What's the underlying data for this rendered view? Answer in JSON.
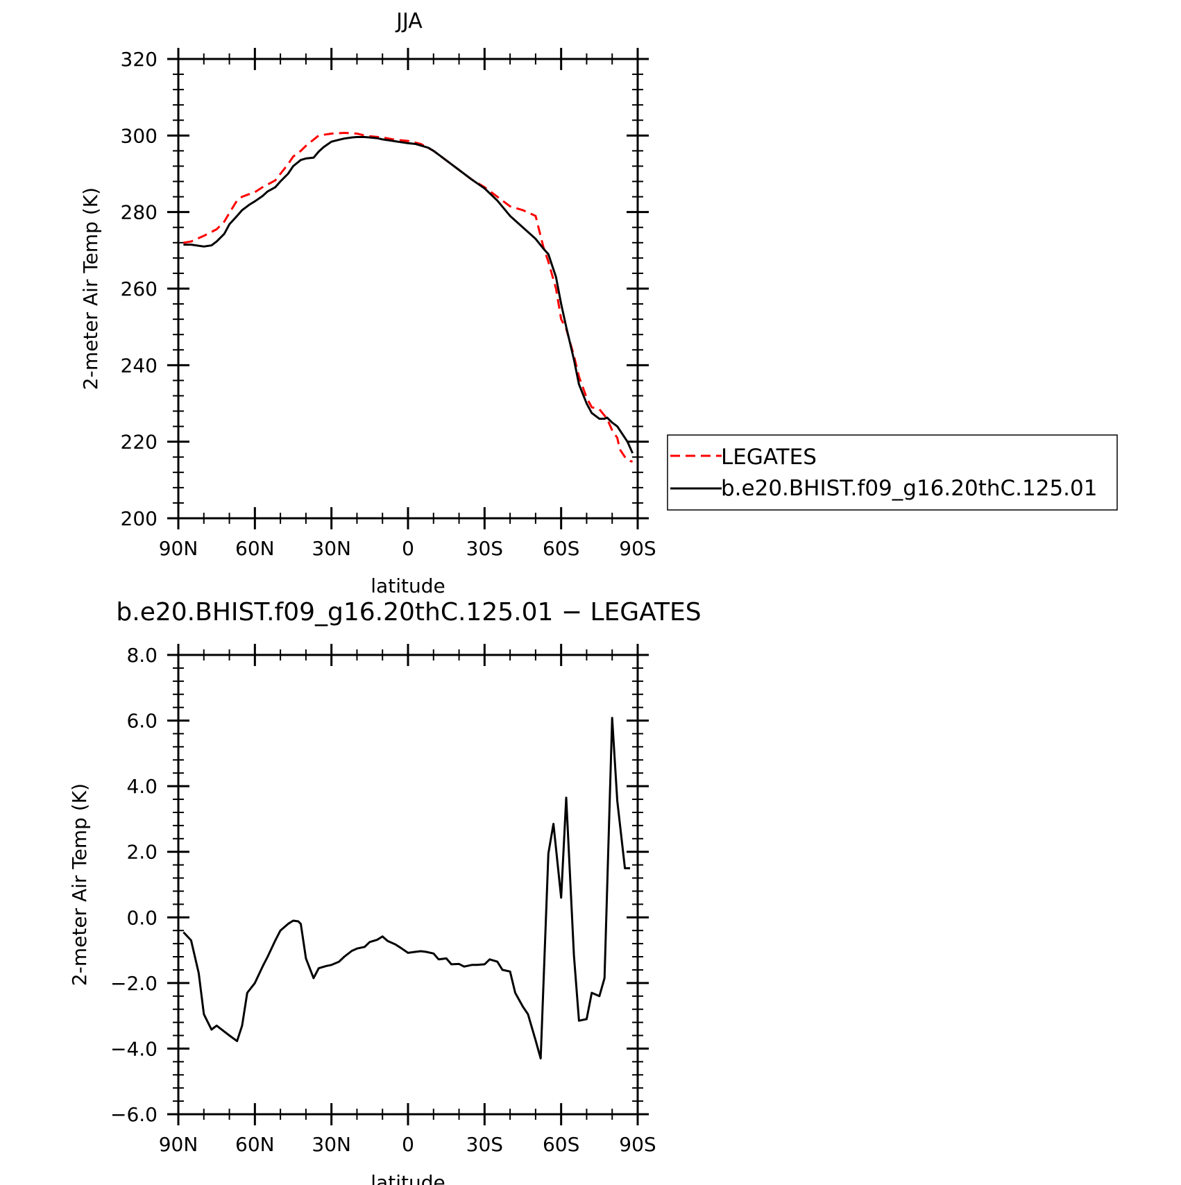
{
  "chart_data": [
    {
      "type": "line",
      "title": "JJA",
      "xlabel": "latitude",
      "ylabel": "2-meter Air Temp (K)",
      "xlim": [
        90,
        -90
      ],
      "ylim": [
        200,
        320
      ],
      "x_ticks": [
        {
          "value": 90,
          "label": "90N"
        },
        {
          "value": 60,
          "label": "60N"
        },
        {
          "value": 30,
          "label": "30N"
        },
        {
          "value": 0,
          "label": "0"
        },
        {
          "value": -30,
          "label": "30S"
        },
        {
          "value": -60,
          "label": "60S"
        },
        {
          "value": -90,
          "label": "90S"
        }
      ],
      "y_ticks": [
        {
          "value": 200,
          "label": "200"
        },
        {
          "value": 220,
          "label": "220"
        },
        {
          "value": 240,
          "label": "240"
        },
        {
          "value": 260,
          "label": "260"
        },
        {
          "value": 280,
          "label": "280"
        },
        {
          "value": 300,
          "label": "300"
        },
        {
          "value": 320,
          "label": "320"
        }
      ],
      "legend_position": "right",
      "series": [
        {
          "name": "LEGATES",
          "color": "#ff0000",
          "dash": "dashed",
          "x": [
            88,
            85,
            80,
            75,
            72,
            70,
            67,
            65,
            63,
            60,
            57,
            55,
            52,
            50,
            47,
            45,
            42,
            40,
            35,
            30,
            27,
            25,
            20,
            17,
            15,
            10,
            5,
            0,
            -5,
            -10,
            -15,
            -20,
            -25,
            -30,
            -35,
            -40,
            -45,
            -50,
            -53,
            -55,
            -58,
            -60,
            -62,
            -65,
            -67,
            -70,
            -72,
            -75,
            -78,
            -80,
            -82,
            -83,
            -84,
            -85,
            -87,
            -88
          ],
          "y": [
            272,
            272.3,
            273.8,
            275.5,
            277.5,
            279.8,
            283,
            284,
            284.5,
            285.2,
            286.5,
            287.2,
            288.3,
            290,
            292.5,
            294.5,
            296,
            297.3,
            300,
            300.5,
            300.6,
            300.7,
            300.5,
            300,
            299.8,
            299.5,
            298.9,
            298.6,
            297.8,
            296,
            293.5,
            291,
            288.5,
            286.5,
            284,
            281.5,
            280.5,
            279,
            271,
            267,
            260,
            252,
            249.5,
            242.5,
            237,
            231.5,
            229,
            228.5,
            226,
            223,
            221,
            218,
            217,
            216,
            215,
            214.8
          ]
        },
        {
          "name": "b.e20.BHIST.f09_g16.20thC.125.01",
          "color": "#000000",
          "dash": "solid",
          "x": [
            88,
            85,
            80,
            77,
            75,
            72,
            70,
            67,
            65,
            62,
            60,
            57,
            55,
            52,
            50,
            47,
            45,
            42,
            40,
            37,
            35,
            33,
            30,
            27,
            25,
            22,
            20,
            17,
            15,
            12,
            10,
            7,
            5,
            2,
            0,
            -3,
            -5,
            -8,
            -10,
            -15,
            -20,
            -25,
            -30,
            -35,
            -40,
            -45,
            -50,
            -53,
            -55,
            -58,
            -60,
            -62,
            -65,
            -67,
            -70,
            -72,
            -75,
            -77,
            -78,
            -80,
            -82,
            -84,
            -86,
            -88
          ],
          "y": [
            271.5,
            271.5,
            271,
            271.3,
            272.3,
            274.3,
            276.8,
            279,
            280.5,
            282,
            282.8,
            284.2,
            285.4,
            286.5,
            288,
            290,
            292,
            293.6,
            294,
            294.2,
            295.8,
            297,
            298.4,
            298.9,
            299.2,
            299.5,
            299.6,
            299.6,
            299.5,
            299.3,
            299,
            298.7,
            298.5,
            298.2,
            298,
            297.8,
            297.4,
            296.8,
            296,
            293.5,
            291,
            288.5,
            286.2,
            283,
            279,
            276,
            273,
            270.5,
            269,
            263,
            256,
            250,
            241.5,
            235,
            230,
            227.5,
            226,
            226,
            226.3,
            225,
            224,
            222,
            220,
            217
          ]
        }
      ]
    },
    {
      "type": "line",
      "title": "b.e20.BHIST.f09_g16.20thC.125.01 − LEGATES",
      "xlabel": "latitude",
      "ylabel": "2-meter Air Temp (K)",
      "xlim": [
        90,
        -90
      ],
      "ylim": [
        -6,
        8
      ],
      "x_ticks": [
        {
          "value": 90,
          "label": "90N"
        },
        {
          "value": 60,
          "label": "60N"
        },
        {
          "value": 30,
          "label": "30N"
        },
        {
          "value": 0,
          "label": "0"
        },
        {
          "value": -30,
          "label": "30S"
        },
        {
          "value": -60,
          "label": "60S"
        },
        {
          "value": -90,
          "label": "90S"
        }
      ],
      "y_ticks": [
        {
          "value": -6,
          "label": "−6.0"
        },
        {
          "value": -4,
          "label": "−4.0"
        },
        {
          "value": -2,
          "label": "−2.0"
        },
        {
          "value": 0,
          "label": "0.0"
        },
        {
          "value": 2,
          "label": "2.0"
        },
        {
          "value": 4,
          "label": "4.0"
        },
        {
          "value": 6,
          "label": "6.0"
        },
        {
          "value": 8,
          "label": "8.0"
        }
      ],
      "series": [
        {
          "color": "#000000",
          "dash": "solid",
          "x": [
            88,
            85,
            82,
            80,
            77,
            75,
            72,
            70,
            67,
            65,
            63,
            60,
            57,
            55,
            52,
            50,
            47,
            45,
            43,
            42,
            40,
            37,
            35,
            32,
            30,
            27,
            25,
            22,
            20,
            17,
            15,
            12,
            10,
            8,
            5,
            3,
            0,
            -3,
            -5,
            -7,
            -10,
            -12,
            -15,
            -17,
            -20,
            -22,
            -25,
            -27,
            -30,
            -32,
            -35,
            -37,
            -40,
            -42,
            -45,
            -47,
            -50,
            -52,
            -55,
            -57,
            -60,
            -62,
            -65,
            -67,
            -70,
            -72,
            -75,
            -77,
            -80,
            -82,
            -85,
            -87
          ],
          "y": [
            -0.45,
            -0.7,
            -1.7,
            -2.95,
            -3.42,
            -3.3,
            -3.48,
            -3.6,
            -3.77,
            -3.3,
            -2.3,
            -2.0,
            -1.5,
            -1.2,
            -0.7,
            -0.4,
            -0.2,
            -0.1,
            -0.12,
            -0.2,
            -1.25,
            -1.85,
            -1.55,
            -1.48,
            -1.45,
            -1.35,
            -1.2,
            -1.02,
            -0.95,
            -0.9,
            -0.75,
            -0.68,
            -0.58,
            -0.72,
            -0.82,
            -0.92,
            -1.08,
            -1.05,
            -1.03,
            -1.05,
            -1.1,
            -1.28,
            -1.25,
            -1.43,
            -1.42,
            -1.5,
            -1.45,
            -1.45,
            -1.43,
            -1.28,
            -1.35,
            -1.6,
            -1.65,
            -2.3,
            -2.72,
            -2.95,
            -3.75,
            -4.3,
            1.95,
            2.85,
            0.6,
            3.65,
            -1.15,
            -3.15,
            -3.1,
            -2.3,
            -2.4,
            -1.85,
            6.08,
            3.55,
            1.5,
            1.5
          ]
        }
      ]
    }
  ]
}
